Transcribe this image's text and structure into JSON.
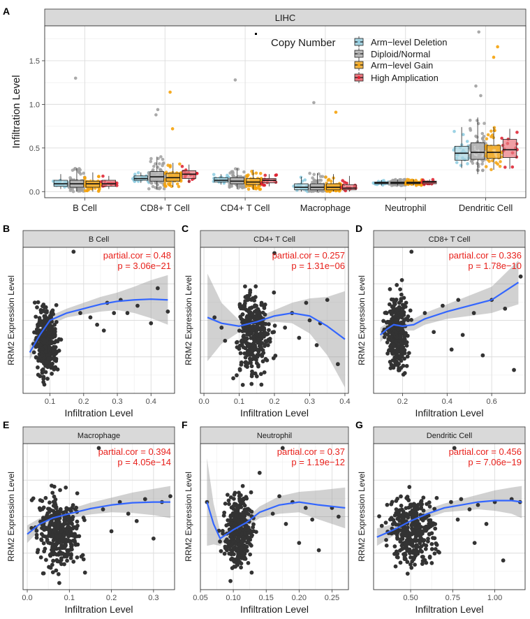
{
  "panel_letters": [
    "A",
    "B",
    "C",
    "D",
    "E",
    "F",
    "G"
  ],
  "chart_data": [
    {
      "id": "A",
      "type": "box",
      "title": "LIHC",
      "xlabel": "",
      "ylabel": "Infiltration Level",
      "ylim": [
        -0.07,
        1.9
      ],
      "yticks": [
        0.0,
        0.5,
        1.0,
        1.5
      ],
      "yticklabels": [
        "0.0",
        "0.5",
        "1.0",
        "1.5"
      ],
      "categories": [
        "B Cell",
        "CD8+ T Cell",
        "CD4+ T Cell",
        "Macrophage",
        "Neutrophil",
        "Dendritic Cell"
      ],
      "legend": {
        "title": "Copy Number",
        "position": "top-right",
        "entries": [
          "Arm−level Deletion",
          "Diploid/Normal",
          "Arm−level Gain",
          "High Amplication"
        ]
      },
      "colors": {
        "fill": [
          "#a6d3e0",
          "#bcbcbc",
          "#f1b545",
          "#e8767e"
        ],
        "points": [
          "#8ccbe0",
          "#a0a0a0",
          "#f5a20a",
          "#dd1c2c"
        ]
      },
      "series": [
        {
          "name": "Arm−level Deletion",
          "boxes": [
            [
              0.03,
              0.06,
              0.09,
              0.13,
              0.2
            ],
            [
              0.1,
              0.13,
              0.15,
              0.18,
              0.22
            ],
            [
              0.08,
              0.11,
              0.13,
              0.16,
              0.2
            ],
            [
              0.0,
              0.02,
              0.05,
              0.09,
              0.17
            ],
            [
              0.07,
              0.09,
              0.1,
              0.11,
              0.13
            ],
            [
              0.27,
              0.36,
              0.44,
              0.52,
              0.74
            ]
          ]
        },
        {
          "name": "Diploid/Normal",
          "boxes": [
            [
              0.0,
              0.05,
              0.09,
              0.13,
              0.27
            ],
            [
              0.03,
              0.12,
              0.17,
              0.23,
              0.4
            ],
            [
              0.03,
              0.09,
              0.12,
              0.16,
              0.27
            ],
            [
              0.0,
              0.02,
              0.05,
              0.09,
              0.21
            ],
            [
              0.07,
              0.09,
              0.1,
              0.11,
              0.14
            ],
            [
              0.2,
              0.37,
              0.45,
              0.56,
              0.85
            ]
          ]
        },
        {
          "name": "Arm−level Gain",
          "boxes": [
            [
              0.0,
              0.05,
              0.09,
              0.12,
              0.22
            ],
            [
              0.05,
              0.12,
              0.16,
              0.21,
              0.33
            ],
            [
              0.02,
              0.08,
              0.11,
              0.15,
              0.25
            ],
            [
              0.0,
              0.02,
              0.05,
              0.09,
              0.2
            ],
            [
              0.07,
              0.09,
              0.1,
              0.11,
              0.14
            ],
            [
              0.25,
              0.38,
              0.45,
              0.53,
              0.74
            ]
          ]
        },
        {
          "name": "High Amplication",
          "boxes": [
            [
              0.03,
              0.06,
              0.09,
              0.13,
              0.18
            ],
            [
              0.1,
              0.15,
              0.2,
              0.24,
              0.31
            ],
            [
              0.06,
              0.1,
              0.13,
              0.15,
              0.2
            ],
            [
              0.0,
              0.02,
              0.04,
              0.08,
              0.18
            ],
            [
              0.08,
              0.09,
              0.11,
              0.12,
              0.14
            ],
            [
              0.26,
              0.39,
              0.48,
              0.6,
              0.72
            ]
          ]
        }
      ],
      "outliers": [
        [
          1,
          0,
          1.3
        ],
        [
          1,
          1,
          0.94
        ],
        [
          1,
          1,
          0.88
        ],
        [
          2,
          1,
          1.14
        ],
        [
          2,
          1,
          0.72
        ],
        [
          1,
          2,
          1.28
        ],
        [
          1,
          3,
          1.02
        ],
        [
          2,
          3,
          0.91
        ],
        [
          1,
          5,
          1.83
        ],
        [
          2,
          5,
          1.66
        ],
        [
          2,
          5,
          1.54
        ],
        [
          1,
          5,
          1.21
        ],
        [
          1,
          5,
          1.1
        ]
      ]
    },
    {
      "id": "B",
      "type": "scatter",
      "title": "B Cell",
      "xlabel": "Infiltration Level",
      "ylabel": "RRM2 Expression Level",
      "annotation": [
        "partial.cor = 0.48",
        "p = 3.06e−21"
      ],
      "xlim": [
        0.02,
        0.47
      ],
      "xticks": [
        0.1,
        0.2,
        0.3,
        0.4
      ],
      "xticklabels": [
        "0.1",
        "0.2",
        "0.3",
        "0.4"
      ],
      "ylim": [
        0,
        1
      ],
      "cloud": {
        "xmin": 0.04,
        "xmax": 0.14,
        "ymin": 0.03,
        "ymax": 0.7,
        "n": 360
      },
      "extra_points": [
        [
          0.17,
          0.97
        ],
        [
          0.19,
          0.55
        ],
        [
          0.22,
          0.52
        ],
        [
          0.24,
          0.47
        ],
        [
          0.26,
          0.43
        ],
        [
          0.27,
          0.62
        ],
        [
          0.29,
          0.55
        ],
        [
          0.31,
          0.64
        ],
        [
          0.33,
          0.55
        ],
        [
          0.36,
          0.6
        ],
        [
          0.4,
          0.48
        ],
        [
          0.42,
          0.72
        ],
        [
          0.45,
          0.56
        ]
      ],
      "fit": [
        [
          0.04,
          0.28
        ],
        [
          0.07,
          0.4
        ],
        [
          0.1,
          0.5
        ],
        [
          0.15,
          0.55
        ],
        [
          0.2,
          0.58
        ],
        [
          0.25,
          0.61
        ],
        [
          0.3,
          0.63
        ],
        [
          0.35,
          0.64
        ],
        [
          0.4,
          0.645
        ],
        [
          0.45,
          0.64
        ]
      ],
      "ci_width": [
        0.05,
        0.04,
        0.03,
        0.03,
        0.04,
        0.05,
        0.06,
        0.09,
        0.13,
        0.17
      ]
    },
    {
      "id": "C",
      "type": "scatter",
      "title": "CD4+ T Cell",
      "xlabel": "Infiltration Level",
      "ylabel": "RRM2 Expression Level",
      "annotation": [
        "partial.cor = 0.257",
        "p = 1.31e−06"
      ],
      "xlim": [
        -0.01,
        0.41
      ],
      "xticks": [
        0.0,
        0.1,
        0.2,
        0.3,
        0.4
      ],
      "xticklabels": [
        "0.0",
        "0.1",
        "0.2",
        "0.3",
        "0.4"
      ],
      "ylim": [
        0,
        1
      ],
      "cloud": {
        "xmin": 0.07,
        "xmax": 0.21,
        "ymin": 0.04,
        "ymax": 0.78,
        "n": 330
      },
      "extra_points": [
        [
          0.2,
          0.96
        ],
        [
          0.23,
          0.45
        ],
        [
          0.25,
          0.55
        ],
        [
          0.27,
          0.38
        ],
        [
          0.29,
          0.62
        ],
        [
          0.3,
          0.5
        ],
        [
          0.32,
          0.33
        ],
        [
          0.33,
          0.48
        ],
        [
          0.35,
          0.64
        ],
        [
          0.38,
          0.2
        ],
        [
          0.03,
          0.52
        ],
        [
          0.05,
          0.45
        ],
        [
          0.06,
          0.36
        ]
      ],
      "fit": [
        [
          0.01,
          0.52
        ],
        [
          0.05,
          0.48
        ],
        [
          0.1,
          0.46
        ],
        [
          0.15,
          0.49
        ],
        [
          0.2,
          0.53
        ],
        [
          0.25,
          0.55
        ],
        [
          0.3,
          0.53
        ],
        [
          0.35,
          0.46
        ],
        [
          0.4,
          0.37
        ]
      ],
      "ci_width": [
        0.3,
        0.14,
        0.04,
        0.03,
        0.04,
        0.07,
        0.12,
        0.2,
        0.33
      ]
    },
    {
      "id": "D",
      "type": "scatter",
      "title": "CD8+ T Cell",
      "xlabel": "Infiltration Level",
      "ylabel": "RRM2 Expression Level",
      "annotation": [
        "partial.cor = 0.336",
        "p = 1.78e−10"
      ],
      "xlim": [
        0.07,
        0.75
      ],
      "xticks": [
        0.2,
        0.4,
        0.6
      ],
      "xticklabels": [
        "0.2",
        "0.4",
        "0.6"
      ],
      "ylim": [
        0,
        1
      ],
      "cloud": {
        "xmin": 0.1,
        "xmax": 0.25,
        "ymin": 0.05,
        "ymax": 0.78,
        "n": 340
      },
      "extra_points": [
        [
          0.24,
          0.97
        ],
        [
          0.3,
          0.55
        ],
        [
          0.34,
          0.42
        ],
        [
          0.38,
          0.6
        ],
        [
          0.42,
          0.3
        ],
        [
          0.45,
          0.64
        ],
        [
          0.47,
          0.4
        ],
        [
          0.52,
          0.55
        ],
        [
          0.56,
          0.26
        ],
        [
          0.6,
          0.64
        ],
        [
          0.66,
          0.58
        ],
        [
          0.7,
          0.16
        ],
        [
          0.73,
          0.8
        ]
      ],
      "fit": [
        [
          0.1,
          0.4
        ],
        [
          0.13,
          0.44
        ],
        [
          0.16,
          0.47
        ],
        [
          0.2,
          0.46
        ],
        [
          0.25,
          0.47
        ],
        [
          0.3,
          0.51
        ],
        [
          0.4,
          0.56
        ],
        [
          0.5,
          0.6
        ],
        [
          0.6,
          0.64
        ],
        [
          0.72,
          0.76
        ]
      ],
      "ci_width": [
        0.05,
        0.04,
        0.03,
        0.03,
        0.04,
        0.04,
        0.05,
        0.07,
        0.09,
        0.15
      ]
    },
    {
      "id": "E",
      "type": "scatter",
      "title": "Macrophage",
      "xlabel": "Infiltration Level",
      "ylabel": "RRM2 Expression Level",
      "annotation": [
        "partial.cor = 0.394",
        "p = 4.05e−14"
      ],
      "xlim": [
        -0.01,
        0.35
      ],
      "xticks": [
        0.0,
        0.1,
        0.2,
        0.3
      ],
      "xticklabels": [
        "0.0",
        "0.1",
        "0.2",
        "0.3"
      ],
      "ylim": [
        0,
        1
      ],
      "cloud": {
        "xmin": 0.0,
        "xmax": 0.15,
        "ymin": 0.04,
        "ymax": 0.75,
        "n": 360
      },
      "extra_points": [
        [
          0.17,
          0.97
        ],
        [
          0.18,
          0.55
        ],
        [
          0.2,
          0.4
        ],
        [
          0.22,
          0.6
        ],
        [
          0.24,
          0.52
        ],
        [
          0.26,
          0.47
        ],
        [
          0.28,
          0.62
        ],
        [
          0.3,
          0.35
        ],
        [
          0.32,
          0.6
        ],
        [
          0.34,
          0.64
        ]
      ],
      "fit": [
        [
          0.0,
          0.38
        ],
        [
          0.03,
          0.45
        ],
        [
          0.06,
          0.49
        ],
        [
          0.1,
          0.52
        ],
        [
          0.15,
          0.555
        ],
        [
          0.2,
          0.58
        ],
        [
          0.25,
          0.595
        ],
        [
          0.3,
          0.6
        ],
        [
          0.34,
          0.6
        ]
      ],
      "ci_width": [
        0.06,
        0.04,
        0.03,
        0.03,
        0.04,
        0.05,
        0.07,
        0.09,
        0.11
      ]
    },
    {
      "id": "F",
      "type": "scatter",
      "title": "Neutrophil",
      "xlabel": "Infiltration Level",
      "ylabel": "RRM2 Expression Level",
      "annotation": [
        "partial.cor = 0.37",
        "p = 1.19e−12"
      ],
      "xlim": [
        0.05,
        0.275
      ],
      "xticks": [
        0.05,
        0.1,
        0.15,
        0.2,
        0.25
      ],
      "xticklabels": [
        "0.05",
        "0.10",
        "0.15",
        "0.20",
        "0.25"
      ],
      "ylim": [
        0,
        1
      ],
      "cloud": {
        "xmin": 0.075,
        "xmax": 0.14,
        "ymin": 0.03,
        "ymax": 0.76,
        "n": 360
      },
      "extra_points": [
        [
          0.175,
          0.97
        ],
        [
          0.14,
          0.8
        ],
        [
          0.16,
          0.52
        ],
        [
          0.17,
          0.64
        ],
        [
          0.18,
          0.45
        ],
        [
          0.19,
          0.6
        ],
        [
          0.2,
          0.32
        ],
        [
          0.21,
          0.56
        ],
        [
          0.22,
          0.48
        ],
        [
          0.23,
          0.27
        ],
        [
          0.25,
          0.56
        ],
        [
          0.26,
          0.5
        ],
        [
          0.06,
          0.6
        ]
      ],
      "fit": [
        [
          0.06,
          0.6
        ],
        [
          0.07,
          0.45
        ],
        [
          0.08,
          0.35
        ],
        [
          0.09,
          0.38
        ],
        [
          0.1,
          0.41
        ],
        [
          0.12,
          0.46
        ],
        [
          0.14,
          0.53
        ],
        [
          0.17,
          0.58
        ],
        [
          0.2,
          0.6
        ],
        [
          0.23,
          0.58
        ],
        [
          0.27,
          0.56
        ]
      ],
      "ci_width": [
        0.3,
        0.14,
        0.05,
        0.03,
        0.03,
        0.03,
        0.04,
        0.06,
        0.07,
        0.1,
        0.14
      ]
    },
    {
      "id": "G",
      "type": "scatter",
      "title": "Dendritic Cell",
      "xlabel": "Infiltration Level",
      "ylabel": "RRM2 Expression Level",
      "annotation": [
        "partial.cor = 0.456",
        "p = 7.06e−19"
      ],
      "xlim": [
        0.28,
        1.18
      ],
      "xticks": [
        0.5,
        0.75,
        1.0
      ],
      "xticklabels": [
        "0.50",
        "0.75",
        "1.00"
      ],
      "ylim": [
        0,
        1
      ],
      "cloud": {
        "xmin": 0.3,
        "xmax": 0.72,
        "ymin": 0.05,
        "ymax": 0.75,
        "n": 340
      },
      "extra_points": [
        [
          0.76,
          0.97
        ],
        [
          0.74,
          0.6
        ],
        [
          0.78,
          0.48
        ],
        [
          0.8,
          0.62
        ],
        [
          0.85,
          0.55
        ],
        [
          0.88,
          0.32
        ],
        [
          0.9,
          0.58
        ],
        [
          0.95,
          0.45
        ],
        [
          1.0,
          0.6
        ],
        [
          1.05,
          0.2
        ],
        [
          1.1,
          0.62
        ],
        [
          1.15,
          0.6
        ]
      ],
      "fit": [
        [
          0.3,
          0.36
        ],
        [
          0.4,
          0.41
        ],
        [
          0.5,
          0.47
        ],
        [
          0.6,
          0.52
        ],
        [
          0.7,
          0.56
        ],
        [
          0.8,
          0.58
        ],
        [
          0.9,
          0.6
        ],
        [
          1.0,
          0.61
        ],
        [
          1.1,
          0.61
        ],
        [
          1.16,
          0.6
        ]
      ],
      "ci_width": [
        0.06,
        0.04,
        0.03,
        0.03,
        0.03,
        0.04,
        0.05,
        0.07,
        0.09,
        0.11
      ]
    }
  ]
}
